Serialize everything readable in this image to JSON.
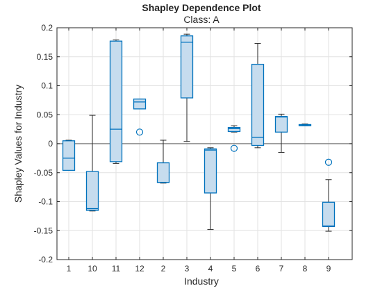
{
  "chart_data": {
    "type": "box",
    "title": "Shapley Dependence Plot",
    "subtitle": "Class: A",
    "xlabel": "Industry",
    "ylabel": "Shapley Values for Industry",
    "ylim": [
      -0.2,
      0.2
    ],
    "yticks": [
      -0.2,
      -0.15,
      -0.1,
      -0.05,
      0,
      0.05,
      0.1,
      0.15,
      0.2
    ],
    "ytick_labels": [
      "-0.2",
      "-0.15",
      "-0.1",
      "-0.05",
      "0",
      "0.05",
      "0.1",
      "0.15",
      "0.2"
    ],
    "grid": true,
    "zero_line": true,
    "categories": [
      "1",
      "10",
      "11",
      "12",
      "2",
      "3",
      "4",
      "5",
      "6",
      "7",
      "8",
      "9"
    ],
    "boxes": [
      {
        "category": "1",
        "min": -0.046,
        "q1": -0.046,
        "median": -0.025,
        "q3": 0.005,
        "max": 0.006,
        "outliers": []
      },
      {
        "category": "10",
        "min": -0.116,
        "q1": -0.115,
        "median": -0.112,
        "q3": -0.048,
        "max": 0.049,
        "outliers": []
      },
      {
        "category": "11",
        "min": -0.034,
        "q1": -0.031,
        "median": 0.025,
        "q3": 0.177,
        "max": 0.179,
        "outliers": []
      },
      {
        "category": "12",
        "min": 0.06,
        "q1": 0.06,
        "median": 0.072,
        "q3": 0.077,
        "max": 0.077,
        "outliers": [
          0.02
        ]
      },
      {
        "category": "2",
        "min": -0.068,
        "q1": -0.067,
        "median": -0.067,
        "q3": -0.033,
        "max": 0.006,
        "outliers": []
      },
      {
        "category": "3",
        "min": 0.004,
        "q1": 0.079,
        "median": 0.175,
        "q3": 0.186,
        "max": 0.189,
        "outliers": []
      },
      {
        "category": "4",
        "min": -0.148,
        "q1": -0.085,
        "median": -0.011,
        "q3": -0.009,
        "max": -0.007,
        "outliers": []
      },
      {
        "category": "5",
        "min": 0.02,
        "q1": 0.021,
        "median": 0.026,
        "q3": 0.028,
        "max": 0.031,
        "outliers": [
          -0.008
        ]
      },
      {
        "category": "6",
        "min": -0.007,
        "q1": -0.003,
        "median": 0.011,
        "q3": 0.137,
        "max": 0.173,
        "outliers": []
      },
      {
        "category": "7",
        "min": -0.015,
        "q1": 0.02,
        "median": 0.046,
        "q3": 0.047,
        "max": 0.051,
        "outliers": []
      },
      {
        "category": "8",
        "min": 0.031,
        "q1": 0.031,
        "median": 0.032,
        "q3": 0.033,
        "max": 0.034,
        "outliers": []
      },
      {
        "category": "9",
        "min": -0.151,
        "q1": -0.143,
        "median": -0.142,
        "q3": -0.101,
        "max": -0.062,
        "outliers": [
          -0.032
        ]
      }
    ]
  },
  "colors": {
    "box_edge": "#0072BD",
    "box_fill": "#c6dcee",
    "whisker": "#262626",
    "grid": "#e2e2e2",
    "axis": "#262626",
    "zero_line": "#808080"
  }
}
